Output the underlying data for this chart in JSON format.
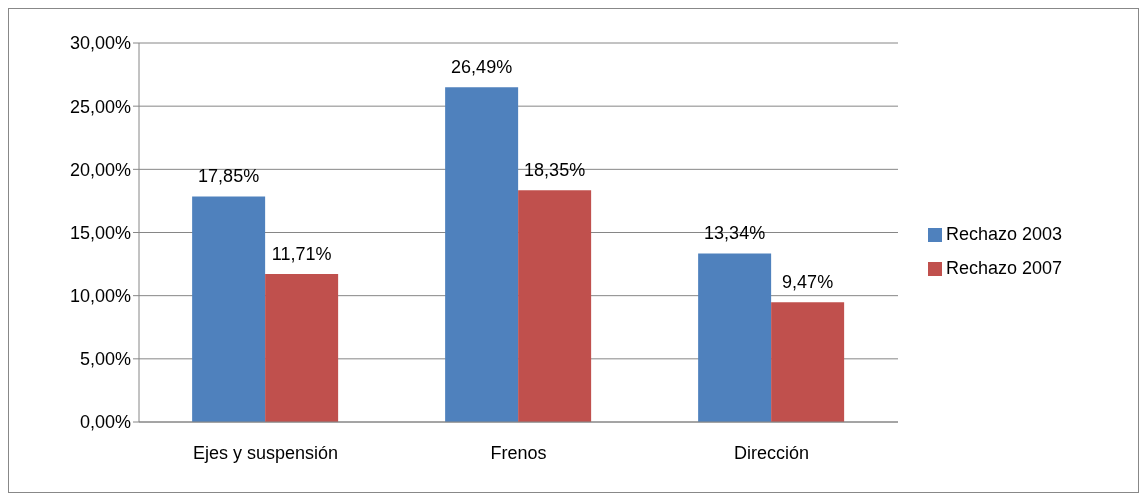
{
  "chart_data": {
    "type": "bar",
    "categories": [
      "Ejes y suspensión",
      "Frenos",
      "Dirección"
    ],
    "series": [
      {
        "name": "Rechazo 2003",
        "color": "#4f81bd",
        "values": [
          17.85,
          26.49,
          13.34
        ],
        "value_labels": [
          "17,85%",
          "26,49%",
          "13,34%"
        ]
      },
      {
        "name": "Rechazo 2007",
        "color": "#c0504d",
        "values": [
          11.71,
          18.35,
          9.47
        ],
        "value_labels": [
          "11,71%",
          "18,35%",
          "9,47%"
        ]
      }
    ],
    "ylim": [
      0,
      30
    ],
    "yticks": [
      {
        "value": 0,
        "label": "0,00%"
      },
      {
        "value": 5,
        "label": "5,00%"
      },
      {
        "value": 10,
        "label": "10,00%"
      },
      {
        "value": 15,
        "label": "15,00%"
      },
      {
        "value": 20,
        "label": "20,00%"
      },
      {
        "value": 25,
        "label": "25,00%"
      },
      {
        "value": 30,
        "label": "30,00%"
      }
    ],
    "grid": "y",
    "legend": "right"
  }
}
